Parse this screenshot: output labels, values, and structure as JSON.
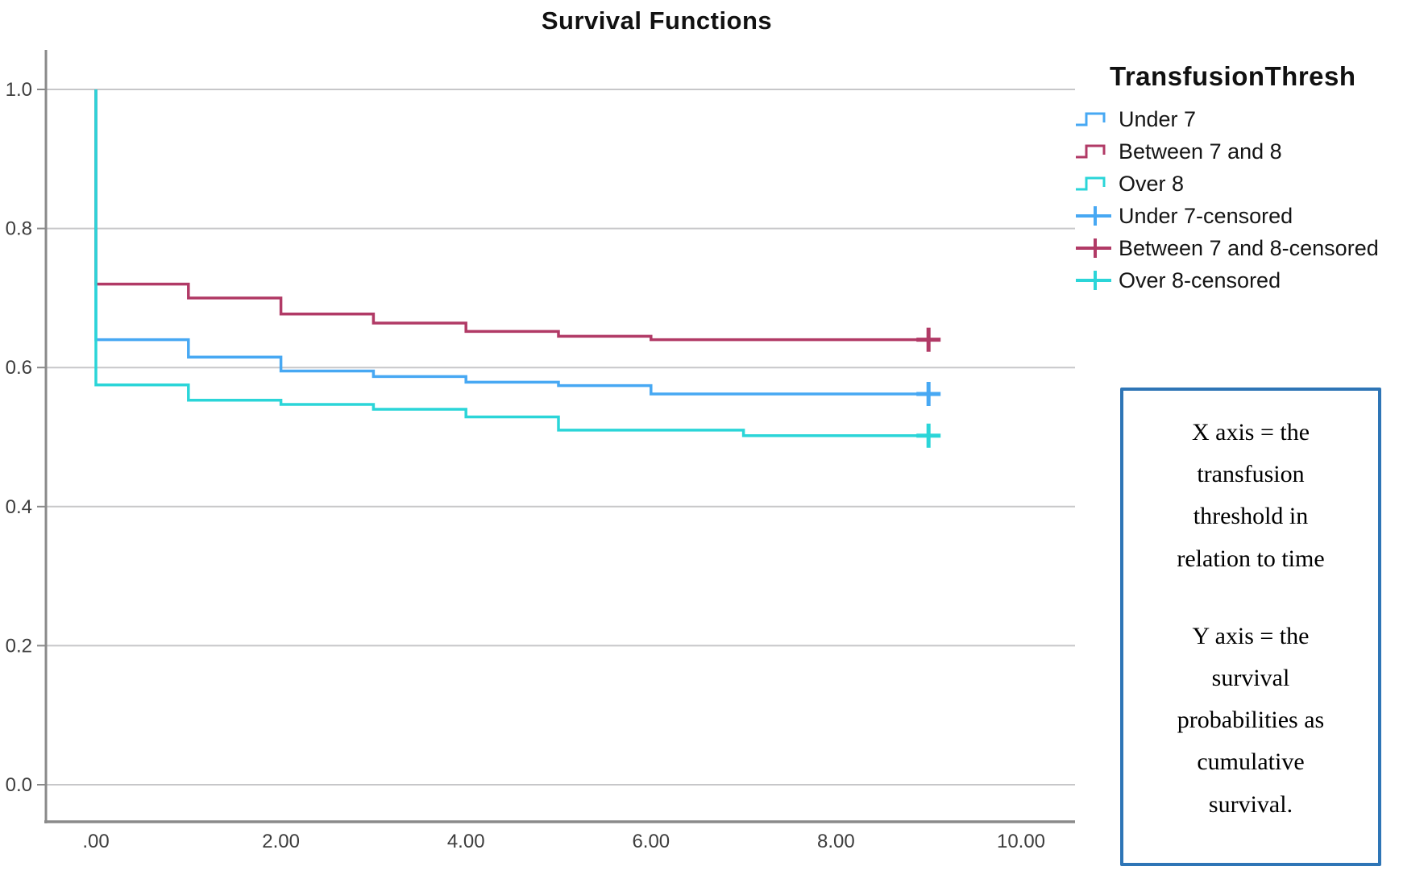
{
  "title": "Survival Functions",
  "legend": {
    "title": "TransfusionThresh",
    "items": [
      {
        "label": "Under 7",
        "color": "#47A8F3",
        "type": "step"
      },
      {
        "label": "Between 7 and 8",
        "color": "#B13A66",
        "type": "step"
      },
      {
        "label": "Over 8",
        "color": "#2BD5D8",
        "type": "step"
      },
      {
        "label": "Under 7-censored",
        "color": "#47A8F3",
        "type": "censored"
      },
      {
        "label": "Between 7 and 8-censored",
        "color": "#B13A66",
        "type": "censored"
      },
      {
        "label": "Over 8-censored",
        "color": "#2BD5D8",
        "type": "censored"
      }
    ]
  },
  "annotation": {
    "border_color": "#2E75B6",
    "para1": "X axis = the\ntransfusion\nthreshold in\nrelation to time",
    "para2": "Y axis = the\nsurvival\nprobabilities as\ncumulative\nsurvival."
  },
  "chart_data": {
    "type": "line",
    "subtype": "kaplan-meier-step-survival",
    "title": "Survival Functions",
    "xlabel": "",
    "ylabel": "",
    "xlim": [
      -0.55,
      10.6
    ],
    "ylim": [
      -0.053,
      1.06
    ],
    "grid": "horizontal",
    "legend_position": "right",
    "colors": {
      "grid": "#C7C7C9",
      "axis": "#8A8A8A",
      "tick_text": "#3D3D3D"
    },
    "x_ticks": [
      {
        "label": ".00",
        "value": 0
      },
      {
        "label": "2.00",
        "value": 2
      },
      {
        "label": "4.00",
        "value": 4
      },
      {
        "label": "6.00",
        "value": 6
      },
      {
        "label": "8.00",
        "value": 8
      },
      {
        "label": "10.00",
        "value": 10
      }
    ],
    "y_ticks": [
      {
        "label": "1.0",
        "value": 1.0
      },
      {
        "label": "0.8",
        "value": 0.8
      },
      {
        "label": "0.6",
        "value": 0.6
      },
      {
        "label": "0.4",
        "value": 0.4
      },
      {
        "label": "0.2",
        "value": 0.2
      },
      {
        "label": "0.0",
        "value": 0.0
      }
    ],
    "series": [
      {
        "name": "Under 7",
        "color": "#47A8F3",
        "steps": [
          [
            0,
            1.0
          ],
          [
            0,
            0.64
          ],
          [
            1,
            0.615
          ],
          [
            2,
            0.595
          ],
          [
            3,
            0.587
          ],
          [
            4,
            0.579
          ],
          [
            5,
            0.574
          ],
          [
            6,
            0.562
          ],
          [
            9,
            0.562
          ]
        ],
        "censored": [
          [
            9,
            0.562
          ]
        ]
      },
      {
        "name": "Between 7 and 8",
        "color": "#B13A66",
        "steps": [
          [
            0,
            1.0
          ],
          [
            0,
            0.72
          ],
          [
            1,
            0.7
          ],
          [
            2,
            0.677
          ],
          [
            3,
            0.664
          ],
          [
            4,
            0.652
          ],
          [
            5,
            0.645
          ],
          [
            6,
            0.64
          ],
          [
            9,
            0.64
          ]
        ],
        "censored": [
          [
            9,
            0.64
          ]
        ]
      },
      {
        "name": "Over 8",
        "color": "#2BD5D8",
        "steps": [
          [
            0,
            1.0
          ],
          [
            0,
            0.575
          ],
          [
            1,
            0.553
          ],
          [
            2,
            0.547
          ],
          [
            3,
            0.54
          ],
          [
            4,
            0.529
          ],
          [
            5,
            0.51
          ],
          [
            7,
            0.502
          ],
          [
            9,
            0.502
          ]
        ],
        "censored": [
          [
            9,
            0.502
          ]
        ]
      }
    ]
  }
}
